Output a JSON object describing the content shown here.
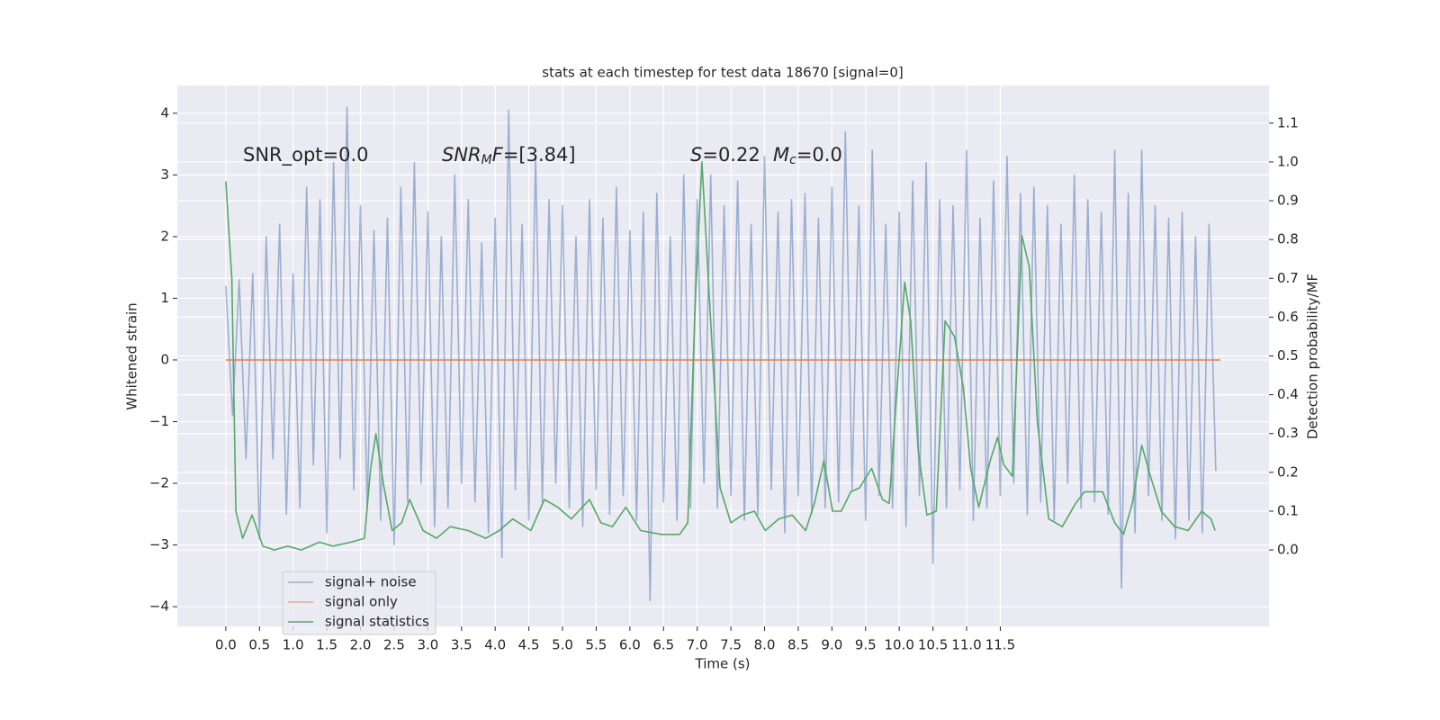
{
  "chart_data": {
    "type": "line",
    "title": "stats at each timestep for test data 18670 [signal=0]",
    "xlabel": "Time (s)",
    "ylabel": "Whitened strain",
    "y2label": "Detection probability/MF",
    "xlim": [
      -0.72,
      15.49
    ],
    "ylim": [
      -4.32,
      4.45
    ],
    "y2lim": [
      -0.197,
      1.197
    ],
    "xticks": [
      {
        "value": 0,
        "label": "0.0"
      },
      0.5,
      {
        "value": 1,
        "label": "1.0"
      },
      1.5,
      {
        "value": 2,
        "label": "2.0"
      },
      2.5,
      {
        "value": 3,
        "label": "3.0"
      },
      3.5,
      {
        "value": 4,
        "label": "4.0"
      },
      4.5,
      {
        "value": 5,
        "label": "5.0"
      },
      5.5,
      {
        "value": 6,
        "label": "6.0"
      },
      6.5,
      {
        "value": 7,
        "label": "7.0"
      },
      7.5,
      {
        "value": 8,
        "label": "8.0"
      },
      8.5,
      {
        "value": 9,
        "label": "9.0"
      },
      9.5,
      {
        "value": 10,
        "label": "10.0"
      },
      10.5,
      {
        "value": 11,
        "label": "11.0"
      },
      11.5
    ],
    "yticks": [
      {
        "value": -4,
        "label": "−4"
      },
      {
        "value": -3,
        "label": "−3"
      },
      {
        "value": -2,
        "label": "−2"
      },
      {
        "value": -1,
        "label": "−1"
      },
      0,
      1,
      2,
      3,
      4
    ],
    "y2ticks": [
      {
        "value": 0,
        "label": "0.0"
      },
      0.1,
      0.2,
      0.3,
      0.4,
      0.5,
      0.6,
      0.7,
      0.8,
      0.9,
      {
        "value": 1,
        "label": "1.0"
      },
      1.1
    ],
    "grid": true,
    "legend": "lower left",
    "annotations": [
      "SNR_opt=0.0",
      [
        "SNR",
        "M",
        "F",
        "=[3.84]"
      ],
      [
        "S",
        "=0.22"
      ],
      [
        "M",
        "c",
        "=0.0"
      ]
    ],
    "series": [
      {
        "name": "signal+ noise",
        "color": "#4c72b0",
        "x": [
          0,
          0.1,
          0.2,
          0.3,
          0.4,
          0.5,
          0.6,
          0.7,
          0.8,
          0.9,
          1,
          1.1,
          1.2,
          1.3,
          1.4,
          1.5,
          1.6,
          1.7,
          1.8,
          1.9,
          2,
          2.1,
          2.2,
          2.3,
          2.4,
          2.5,
          2.6,
          2.7,
          2.8,
          2.9,
          3,
          3.1,
          3.2,
          3.3,
          3.4,
          3.5,
          3.6,
          3.7,
          3.8,
          3.9,
          4,
          4.1,
          4.2,
          4.3,
          4.4,
          4.5,
          4.6,
          4.7,
          4.8,
          4.9,
          5,
          5.1,
          5.2,
          5.3,
          5.4,
          5.5,
          5.6,
          5.7,
          5.8,
          5.9,
          6,
          6.1,
          6.2,
          6.3,
          6.4,
          6.5,
          6.6,
          6.7,
          6.8,
          6.9,
          7,
          7.1,
          7.2,
          7.3,
          7.4,
          7.5,
          7.6,
          7.7,
          7.8,
          7.9,
          8,
          8.1,
          8.2,
          8.3,
          8.4,
          8.5,
          8.6,
          8.7,
          8.8,
          8.9,
          9,
          9.1,
          9.2,
          9.3,
          9.4,
          9.5,
          9.6,
          9.7,
          9.8,
          9.9,
          10,
          10.1,
          10.2,
          10.3,
          10.4,
          10.5,
          10.6,
          10.7,
          10.8,
          10.9,
          11,
          11.1,
          11.2,
          11.3,
          11.4,
          11.5,
          11.6,
          11.7,
          11.8,
          11.9,
          12,
          12.1,
          12.2,
          12.3,
          12.4,
          12.5,
          12.6,
          12.7,
          12.8,
          12.9,
          13,
          13.1,
          13.2,
          13.3,
          13.4,
          13.5,
          13.6,
          13.7,
          13.8,
          13.9,
          14,
          14.1,
          14.2,
          14.3,
          14.4,
          14.5,
          14.6,
          14.7
        ],
        "values": [
          1.2,
          -0.9,
          1.3,
          -1.6,
          1.4,
          -2.9,
          2.0,
          -1.6,
          2.2,
          -2.5,
          1.4,
          -2.4,
          2.8,
          -1.7,
          2.6,
          -2.8,
          3.2,
          -1.6,
          4.1,
          -2.1,
          2.5,
          -2.4,
          2.1,
          -2.6,
          2.3,
          -3.0,
          2.8,
          -2.3,
          3.2,
          -2.0,
          2.4,
          -2.7,
          2.0,
          -2.4,
          3.0,
          -2.0,
          2.6,
          -2.3,
          1.9,
          -2.8,
          2.3,
          -3.2,
          4.05,
          -2.1,
          2.2,
          -2.6,
          3.3,
          -2.3,
          2.6,
          -2.0,
          2.5,
          -2.4,
          2.0,
          -2.7,
          2.6,
          -2.1,
          2.3,
          -2.5,
          2.8,
          -2.2,
          2.1,
          -2.6,
          2.4,
          -3.9,
          2.7,
          -2.3,
          2.0,
          -2.6,
          3.0,
          -2.4,
          2.6,
          -2.0,
          3.0,
          -2.4,
          2.5,
          -2.2,
          2.9,
          -2.6,
          2.2,
          -2.5,
          3.3,
          -2.1,
          2.4,
          -2.8,
          2.6,
          -2.2,
          2.7,
          -2.5,
          2.3,
          -2.4,
          2.8,
          -2.3,
          3.7,
          -2.1,
          2.5,
          -2.6,
          3.4,
          -2.2,
          2.2,
          -2.4,
          2.4,
          -2.7,
          2.9,
          -2.2,
          3.2,
          -3.3,
          2.6,
          -2.4,
          2.5,
          -2.1,
          3.4,
          -2.6,
          2.3,
          -2.4,
          2.9,
          -2.2,
          3.3,
          -2.0,
          2.7,
          -2.5,
          2.8,
          -2.3,
          2.5,
          -2.6,
          2.2,
          -2.0,
          3.0,
          -2.4,
          2.6,
          -2.3,
          2.4,
          -2.5,
          3.4,
          -3.7,
          2.7,
          -2.8,
          3.4,
          -2.2,
          2.5,
          -2.6,
          2.3,
          -2.9,
          2.4,
          -2.6,
          2.0,
          -2.8,
          2.2,
          -1.8
        ]
      },
      {
        "name": "signal only",
        "color": "#dd8452",
        "x": [
          0,
          14.77
        ],
        "values": [
          0,
          0
        ]
      },
      {
        "name": "signal statistics",
        "color": "#55a868",
        "axis": "y2",
        "x": [
          0,
          0.09,
          0.15,
          0.25,
          0.39,
          0.55,
          0.72,
          0.92,
          1.12,
          1.39,
          1.59,
          1.86,
          2.06,
          2.15,
          2.23,
          2.34,
          2.47,
          2.61,
          2.73,
          2.93,
          3.13,
          3.33,
          3.6,
          3.86,
          4.06,
          4.26,
          4.53,
          4.73,
          4.93,
          5.13,
          5.4,
          5.57,
          5.74,
          5.94,
          6.16,
          6.47,
          6.74,
          6.86,
          6.97,
          7.07,
          7.18,
          7.34,
          7.5,
          7.67,
          7.85,
          8.01,
          8.21,
          8.41,
          8.61,
          8.74,
          8.88,
          9.01,
          9.14,
          9.28,
          9.41,
          9.59,
          9.75,
          9.85,
          9.95,
          10.08,
          10.17,
          10.28,
          10.41,
          10.55,
          10.68,
          10.82,
          10.95,
          11.06,
          11.18,
          11.35,
          11.46,
          11.55,
          11.68,
          11.82,
          11.93,
          12.05,
          12.22,
          12.42,
          12.62,
          12.75,
          13.02,
          13.2,
          13.33,
          13.46,
          13.6,
          13.73,
          13.89,
          14.09,
          14.29,
          14.49,
          14.63,
          14.69
        ],
        "values": [
          0.95,
          0.7,
          0.1,
          0.03,
          0.09,
          0.01,
          0.0,
          0.01,
          0.0,
          0.02,
          0.01,
          0.02,
          0.03,
          0.21,
          0.3,
          0.17,
          0.05,
          0.07,
          0.13,
          0.05,
          0.03,
          0.06,
          0.05,
          0.03,
          0.05,
          0.08,
          0.05,
          0.13,
          0.11,
          0.08,
          0.13,
          0.07,
          0.06,
          0.11,
          0.05,
          0.04,
          0.04,
          0.07,
          0.63,
          1.0,
          0.65,
          0.16,
          0.07,
          0.09,
          0.1,
          0.05,
          0.08,
          0.09,
          0.05,
          0.12,
          0.23,
          0.1,
          0.1,
          0.15,
          0.16,
          0.21,
          0.13,
          0.12,
          0.37,
          0.69,
          0.59,
          0.26,
          0.09,
          0.1,
          0.59,
          0.55,
          0.42,
          0.21,
          0.11,
          0.23,
          0.29,
          0.22,
          0.19,
          0.81,
          0.73,
          0.33,
          0.08,
          0.06,
          0.12,
          0.15,
          0.15,
          0.07,
          0.04,
          0.12,
          0.27,
          0.19,
          0.1,
          0.06,
          0.05,
          0.1,
          0.08,
          0.05
        ]
      }
    ]
  }
}
